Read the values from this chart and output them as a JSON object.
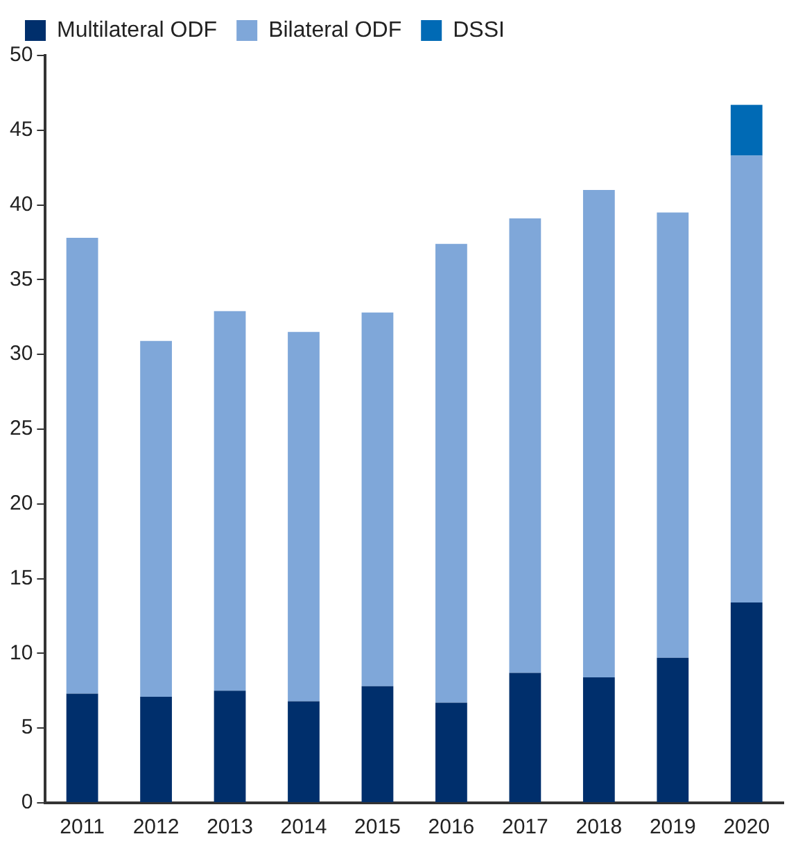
{
  "chart_data": {
    "type": "bar",
    "stacked": true,
    "legend": "top",
    "grid": false,
    "categories": [
      "2011",
      "2012",
      "2013",
      "2014",
      "2015",
      "2016",
      "2017",
      "2018",
      "2019",
      "2020"
    ],
    "ylim": [
      0,
      50
    ],
    "yticks": [
      0,
      5,
      10,
      15,
      20,
      25,
      30,
      35,
      40,
      45,
      50
    ],
    "series": [
      {
        "name": "Multilateral ODF",
        "color": "#002f6c",
        "values": [
          7.3,
          7.1,
          7.5,
          6.8,
          7.8,
          6.7,
          8.7,
          8.4,
          9.7,
          13.4
        ]
      },
      {
        "name": "Bilateral ODF",
        "color": "#7fa7d9",
        "values": [
          30.5,
          23.8,
          25.4,
          24.7,
          25.0,
          30.7,
          30.4,
          32.6,
          29.8,
          29.9
        ]
      },
      {
        "name": "DSSI",
        "color": "#006ab5",
        "values": [
          null,
          null,
          null,
          null,
          null,
          null,
          null,
          null,
          null,
          3.4
        ]
      }
    ]
  }
}
